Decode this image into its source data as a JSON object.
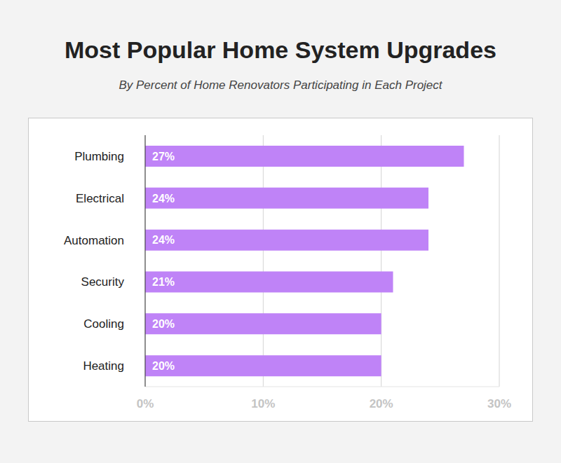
{
  "chart_data": {
    "type": "bar",
    "title": "Most Popular Home System Upgrades",
    "subtitle": "By Percent of Home Renovators Participating in Each Project",
    "categories": [
      "Plumbing",
      "Electrical",
      "Automation",
      "Security",
      "Cooling",
      "Heating"
    ],
    "values": [
      27,
      24,
      24,
      21,
      20,
      20
    ],
    "value_labels": [
      "27%",
      "24%",
      "24%",
      "21%",
      "20%",
      "20%"
    ],
    "color": "#bf83f7",
    "orientation": "horizontal",
    "xlim": [
      0,
      30
    ],
    "xticks": [
      {
        "value": 0,
        "label": "0%"
      },
      {
        "value": 10,
        "label": "10%"
      },
      {
        "value": 20,
        "label": "20%"
      },
      {
        "value": 30,
        "label": "30%"
      }
    ],
    "grid": true,
    "data_labels": true
  }
}
